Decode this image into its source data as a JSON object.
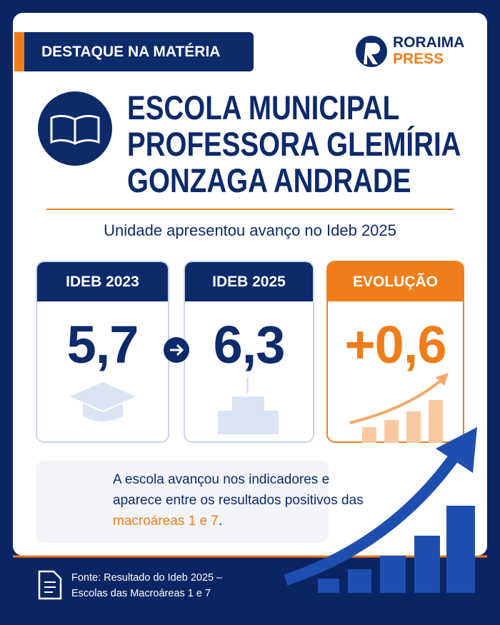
{
  "badge": "DESTAQUE NA MATÉRIA",
  "brand": {
    "line1": "RORAIMA",
    "line2": "PRESS"
  },
  "title": [
    "ESCOLA MUNICIPAL",
    "PROFESSORA GLEMÍRIA",
    "GONZAGA ANDRADE"
  ],
  "subtitle": "Unidade apresentou avanço no Ideb 2025",
  "cards": [
    {
      "label": "IDEB 2023",
      "value": "5,7"
    },
    {
      "label": "IDEB 2025",
      "value": "6,3"
    },
    {
      "label": "EVOLUÇÃO",
      "value": "+0,6"
    }
  ],
  "note": {
    "before": "A escola avançou nos indicadores e aparece entre os resultados positivos das ",
    "highlight": "macroáreas 1 e 7",
    "after": "."
  },
  "source": [
    "Fonte: Resultado do Ideb 2025 –",
    "Escolas das Macroáreas 1 e 7"
  ]
}
